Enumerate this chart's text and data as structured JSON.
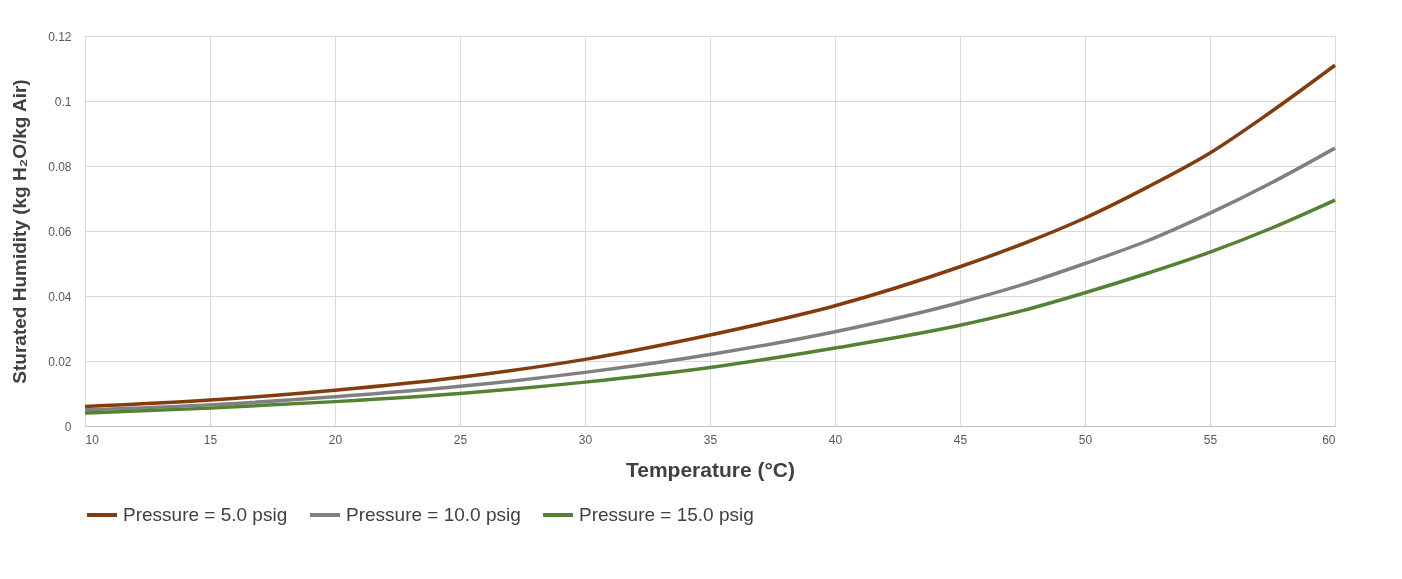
{
  "chart_data": {
    "type": "line",
    "xlabel": "Temperature (°C)",
    "ylabel": "Sturated Humidity (kg H₂O/kg Air)",
    "x": [
      10,
      15,
      20,
      25,
      30,
      35,
      40,
      45,
      47.5,
      50,
      52.5,
      55,
      57.5,
      60
    ],
    "series": [
      {
        "name": "Pressure = 5.0 psig",
        "color": "#843c0c",
        "values": [
          0.006,
          0.008,
          0.011,
          0.015,
          0.0205,
          0.028,
          0.037,
          0.049,
          0.056,
          0.064,
          0.0735,
          0.084,
          0.097,
          0.111
        ]
      },
      {
        "name": "Pressure = 10.0 psig",
        "color": "#808080",
        "values": [
          0.005,
          0.0065,
          0.009,
          0.0122,
          0.0165,
          0.022,
          0.029,
          0.038,
          0.0435,
          0.05,
          0.057,
          0.0655,
          0.075,
          0.0855
        ]
      },
      {
        "name": "Pressure = 15.0 psig",
        "color": "#548235",
        "values": [
          0.004,
          0.0055,
          0.0075,
          0.01,
          0.0135,
          0.018,
          0.024,
          0.031,
          0.0355,
          0.041,
          0.047,
          0.0535,
          0.061,
          0.0695
        ]
      }
    ],
    "xlim": [
      10,
      60
    ],
    "xticks": [
      10,
      15,
      20,
      25,
      30,
      35,
      40,
      45,
      50,
      55,
      60
    ],
    "ylim": [
      0,
      0.12
    ],
    "yticks": [
      0,
      0.02,
      0.04,
      0.06,
      0.08,
      0.1,
      0.12
    ],
    "grid": true,
    "legend": "bottom",
    "marker": "none",
    "line_style": "solid"
  }
}
